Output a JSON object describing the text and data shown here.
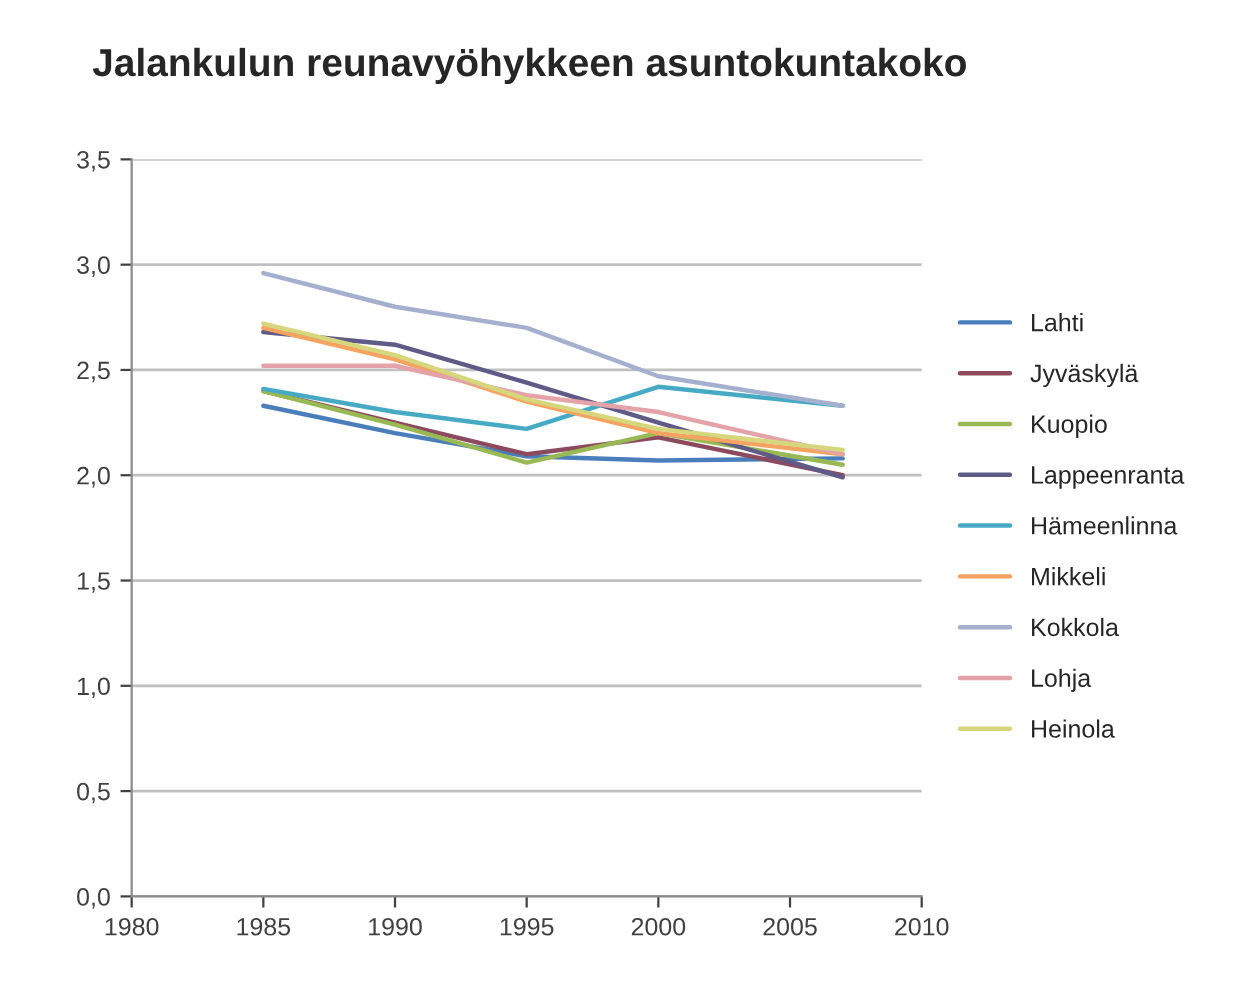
{
  "chart_data": {
    "type": "line",
    "title": "Jalankulun reunavyöhykkeen asuntokuntakoko",
    "x": [
      1985,
      1990,
      1995,
      2000,
      2007
    ],
    "series": [
      {
        "name": "Lahti",
        "color": "#4a7ebb",
        "values": [
          2.33,
          2.2,
          2.09,
          2.07,
          2.08
        ]
      },
      {
        "name": "Jyväskylä",
        "color": "#8c4a5e",
        "values": [
          2.4,
          2.25,
          2.1,
          2.18,
          2.0
        ]
      },
      {
        "name": "Kuopio",
        "color": "#98b954",
        "values": [
          2.4,
          2.24,
          2.06,
          2.2,
          2.05
        ]
      },
      {
        "name": "Lappeenranta",
        "color": "#5f5a86",
        "values": [
          2.68,
          2.62,
          2.44,
          2.25,
          1.99
        ]
      },
      {
        "name": "Hämeenlinna",
        "color": "#46aac5",
        "values": [
          2.41,
          2.3,
          2.22,
          2.42,
          2.33
        ]
      },
      {
        "name": "Mikkeli",
        "color": "#f4a460",
        "values": [
          2.7,
          2.55,
          2.35,
          2.2,
          2.1
        ]
      },
      {
        "name": "Kokkola",
        "color": "#a5b0cf",
        "values": [
          2.96,
          2.8,
          2.7,
          2.47,
          2.33
        ]
      },
      {
        "name": "Lohja",
        "color": "#e3a3a8",
        "values": [
          2.52,
          2.52,
          2.38,
          2.3,
          2.1
        ]
      },
      {
        "name": "Heinola",
        "color": "#d6d67c",
        "values": [
          2.72,
          2.57,
          2.36,
          2.22,
          2.12
        ]
      }
    ],
    "xlim": [
      1980,
      2010
    ],
    "xticks": [
      1980,
      1985,
      1990,
      1995,
      2000,
      2005,
      2010
    ],
    "ylim": [
      0,
      3.5
    ],
    "yticks": [
      {
        "value": 0,
        "label": "0,0"
      },
      {
        "value": 0.5,
        "label": "0,5"
      },
      {
        "value": 1,
        "label": "1,0"
      },
      {
        "value": 1.5,
        "label": "1,5"
      },
      {
        "value": 2,
        "label": "2,0"
      },
      {
        "value": 2.5,
        "label": "2,5"
      },
      {
        "value": 3,
        "label": "3,0"
      },
      {
        "value": 3.5,
        "label": "3,5"
      }
    ],
    "grid": "y",
    "legend": "right",
    "marker": "none",
    "line_style": "solid"
  }
}
